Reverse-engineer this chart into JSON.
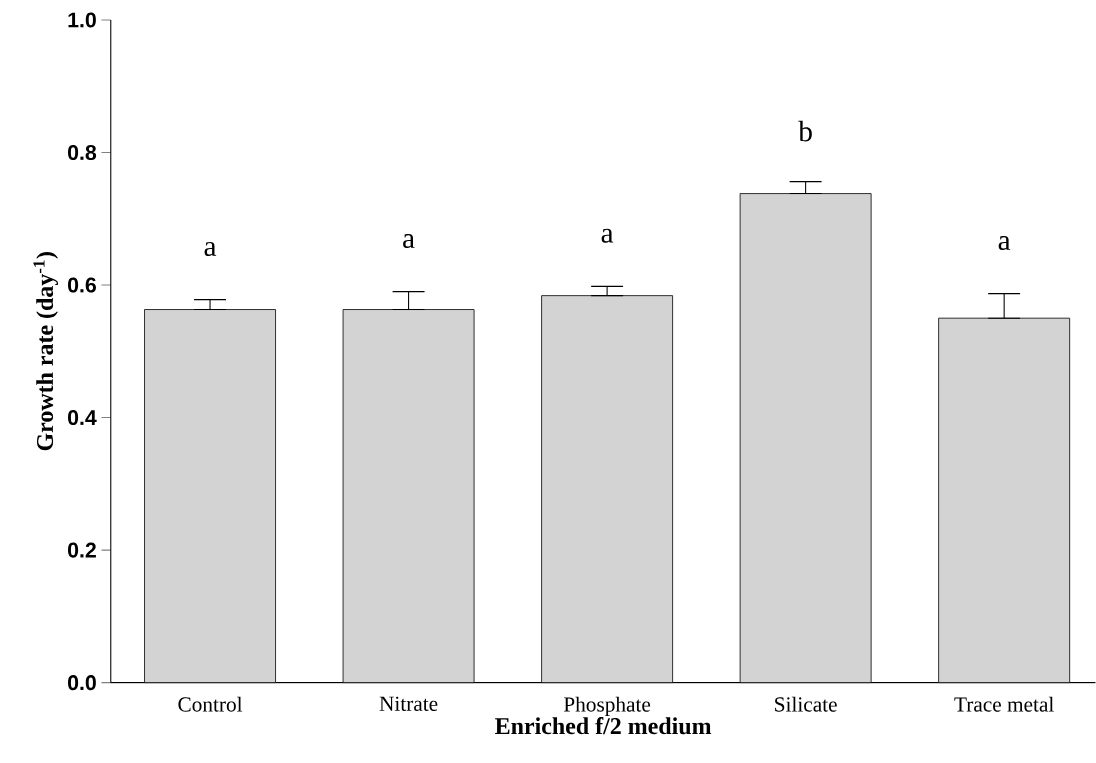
{
  "chart_data": {
    "type": "bar",
    "xlabel": "Enriched f/2 medium",
    "ylabel": "Growth rate (day$^{-1}$)",
    "categories": [
      "Control",
      "Nitrate",
      "Phosphate",
      "Silicate",
      "Trace metal"
    ],
    "values": [
      0.563,
      0.563,
      0.584,
      0.738,
      0.55
    ],
    "errors": [
      [
        0.563,
        0.578
      ],
      [
        0.563,
        0.59
      ],
      [
        0.584,
        0.598
      ],
      [
        0.738,
        0.756
      ],
      [
        0.55,
        0.587
      ]
    ],
    "color": "#d3d3d3",
    "ylim": [
      0,
      1
    ],
    "yticks": [
      {
        "value": 0,
        "label": "0.0"
      },
      {
        "value": 0.2,
        "label": "0.2"
      },
      {
        "value": 0.4,
        "label": "0.4"
      },
      {
        "value": 0.6,
        "label": "0.6"
      },
      {
        "value": 0.8,
        "label": "0.8"
      },
      {
        "value": 1,
        "label": "1.0"
      }
    ],
    "annotations": [
      "a",
      "a",
      "a",
      "b",
      "a"
    ]
  }
}
